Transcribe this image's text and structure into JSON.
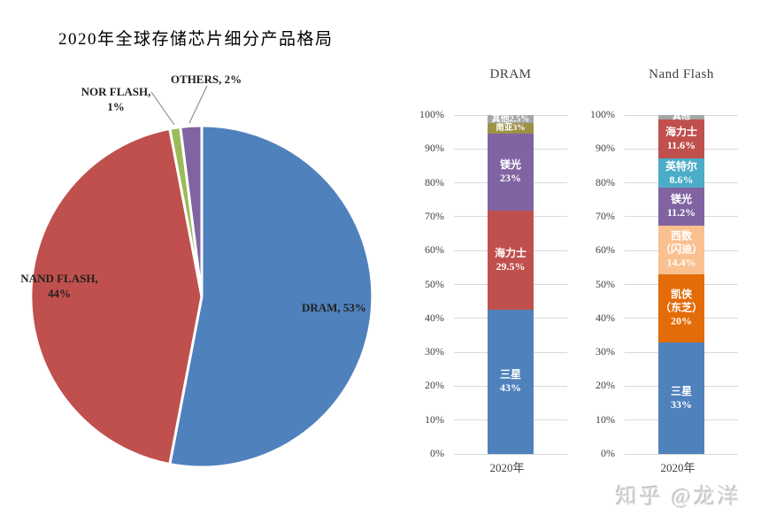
{
  "title": "2020年全球存储芯片细分产品格局",
  "watermark": "知乎 @龙洋",
  "accent_colors": {
    "blue": "#4f81bd",
    "red": "#c0504d",
    "green": "#9bbb59",
    "purple": "#8064a2",
    "olive": "#9c9246",
    "gray": "#a6a6a6",
    "teal": "#4bacc6",
    "dark_orange": "#e36c09",
    "light_orange": "#fac08f",
    "gridline": "#d9d9d9",
    "label_dark": "#1f1f1f",
    "bar_label_white": "#ffffff"
  },
  "chart_data": [
    {
      "type": "pie",
      "title": "2020年全球存储芯片细分产品格局",
      "start_angle_deg": 0,
      "direction": "clockwise",
      "legend": "none",
      "slices": [
        {
          "id": "dram",
          "name": "DRAM",
          "value": 53,
          "color": "#4f81bd",
          "label_lines": [
            "DRAM, 53%"
          ]
        },
        {
          "id": "nand-flash",
          "name": "NAND FLASH",
          "value": 44,
          "color": "#c0504d",
          "label_lines": [
            "NAND FLASH,",
            "44%"
          ]
        },
        {
          "id": "nor-flash",
          "name": "NOR FLASH",
          "value": 1,
          "color": "#9bbb59",
          "label_lines": [
            "NOR FLASH,",
            "1%"
          ]
        },
        {
          "id": "others",
          "name": "OTHERS",
          "value": 2,
          "color": "#8064a2",
          "label_lines": [
            "OTHERS, 2%"
          ]
        }
      ]
    },
    {
      "type": "bar",
      "subtype": "stacked-column-100pct",
      "title": "DRAM",
      "categories": [
        "2020年"
      ],
      "xlabel": "",
      "ylabel": "",
      "ylim": [
        0,
        100
      ],
      "grid": true,
      "legend": "none",
      "yticks": [
        "0%",
        "10%",
        "20%",
        "30%",
        "40%",
        "50%",
        "60%",
        "70%",
        "80%",
        "90%",
        "100%"
      ],
      "stack_order": "bottom-to-top",
      "series": [
        {
          "id": "samsung",
          "name": "三星",
          "values": [
            43
          ],
          "color": "#4f81bd",
          "label_lines": [
            "三星",
            "43%"
          ]
        },
        {
          "id": "hynix",
          "name": "海力士",
          "values": [
            29.5
          ],
          "color": "#c0504d",
          "label_lines": [
            "海力士",
            "29.5%"
          ]
        },
        {
          "id": "micron",
          "name": "镁光",
          "values": [
            23
          ],
          "color": "#8064a2",
          "label_lines": [
            "镁光",
            "23%"
          ]
        },
        {
          "id": "nanya",
          "name": "南亚",
          "values": [
            3
          ],
          "color": "#9c9246",
          "label_lines": [
            "南亚3%"
          ]
        },
        {
          "id": "others",
          "name": "其他",
          "values": [
            2.5
          ],
          "color": "#a6a6a6",
          "label_lines": [
            "其他2.5%"
          ]
        }
      ]
    },
    {
      "type": "bar",
      "subtype": "stacked-column-100pct",
      "title": "Nand Flash",
      "categories": [
        "2020年"
      ],
      "xlabel": "",
      "ylabel": "",
      "ylim": [
        0,
        100
      ],
      "grid": true,
      "legend": "none",
      "yticks": [
        "0%",
        "10%",
        "20%",
        "30%",
        "40%",
        "50%",
        "60%",
        "70%",
        "80%",
        "90%",
        "100%"
      ],
      "stack_order": "bottom-to-top",
      "series": [
        {
          "id": "samsung",
          "name": "三星",
          "values": [
            33
          ],
          "color": "#4f81bd",
          "label_lines": [
            "三星",
            "33%"
          ]
        },
        {
          "id": "kioxia-toshiba",
          "name": "凯侠（东芝）",
          "values": [
            20
          ],
          "color": "#e36c09",
          "label_lines": [
            "凯侠",
            "（东芝）",
            "20%"
          ]
        },
        {
          "id": "wd-sandisk",
          "name": "西数（闪迪）",
          "values": [
            14.4
          ],
          "color": "#fac08f",
          "label_lines": [
            "西数",
            "（闪迪）",
            "14.4%"
          ]
        },
        {
          "id": "micron",
          "name": "镁光",
          "values": [
            11.2
          ],
          "color": "#8064a2",
          "label_lines": [
            "镁光",
            "11.2%"
          ]
        },
        {
          "id": "intel",
          "name": "英特尔",
          "values": [
            8.6
          ],
          "color": "#4bacc6",
          "label_lines": [
            "英特尔",
            "8.6%"
          ]
        },
        {
          "id": "hynix",
          "name": "海力士",
          "values": [
            11.6
          ],
          "color": "#c0504d",
          "label_lines": [
            "海力士",
            "11.6%"
          ]
        },
        {
          "id": "others",
          "name": "其他",
          "values": [
            1.2
          ],
          "color": "#a6a6a6",
          "label_lines": [
            "其他"
          ]
        }
      ]
    }
  ]
}
